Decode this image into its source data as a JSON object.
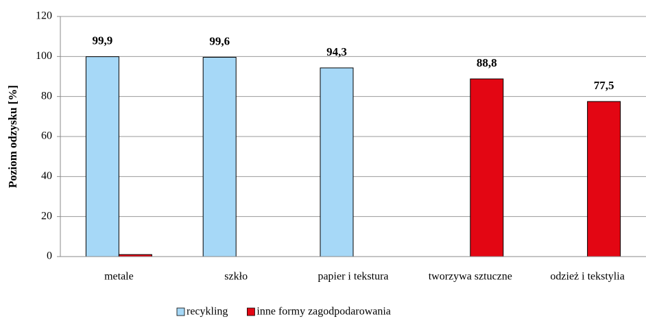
{
  "chart_data": {
    "type": "bar",
    "y_axis_label": "Poziom odzysku [%]",
    "categories": [
      "metale",
      "szkło",
      "papier i tekstura",
      "tworzywa sztuczne",
      "odzież i tekstylia"
    ],
    "series": [
      {
        "name": "recykling",
        "color": "#a6d8f7",
        "values": [
          99.9,
          99.6,
          94.3,
          null,
          null
        ],
        "value_labels": [
          "99,9",
          "99,6",
          "94,3",
          null,
          null
        ]
      },
      {
        "name": "inne formy zagodpodarowania",
        "color": "#e30613",
        "values": [
          1,
          null,
          null,
          88.8,
          77.5
        ],
        "value_labels": [
          null,
          null,
          null,
          "88,8",
          "77,5"
        ]
      }
    ],
    "ylim": [
      0,
      120
    ],
    "yticks": [
      0,
      20,
      40,
      60,
      80,
      100,
      120
    ],
    "grid": true,
    "legend": "bottom"
  }
}
